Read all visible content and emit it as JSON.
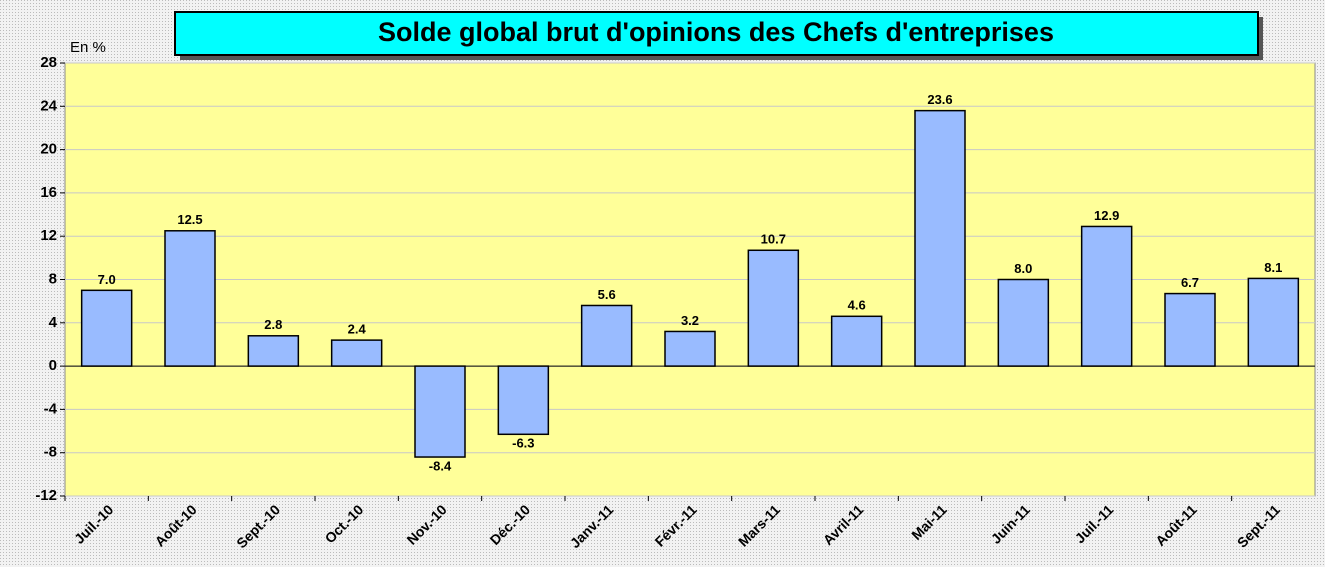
{
  "chart_data": {
    "type": "bar",
    "title": "Solde global brut d'opinions des Chefs d'entreprises",
    "y_label": "En %",
    "categories": [
      "Juil.-10",
      "Août-10",
      "Sept.-10",
      "Oct.-10",
      "Nov.-10",
      "Déc.-10",
      "Janv.-11",
      "Févr.-11",
      "Mars-11",
      "Avril-11",
      "Mai-11",
      "Juin-11",
      "Juil.-11",
      "Août-11",
      "Sept.-11"
    ],
    "values": [
      7.0,
      12.5,
      2.8,
      2.4,
      -8.4,
      -6.3,
      5.6,
      3.2,
      10.7,
      4.6,
      23.6,
      8.0,
      12.9,
      6.7,
      8.1
    ],
    "value_labels": [
      "7.0",
      "12.5",
      "2.8",
      "2.4",
      "-8.4",
      "-6.3",
      "5.6",
      "3.2",
      "10.7",
      "4.6",
      "23.6",
      "8.0",
      "12.9",
      "6.7",
      "8.1"
    ],
    "color": "#99bbff",
    "ylim": [
      -12,
      28
    ],
    "yticks": [
      -12,
      -8,
      -4,
      0,
      4,
      8,
      12,
      16,
      20,
      24,
      28
    ],
    "grid": true
  }
}
